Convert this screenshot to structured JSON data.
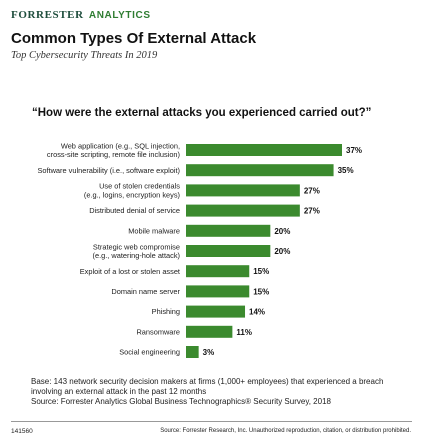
{
  "header": {
    "brand": "Forrester",
    "brand_sub": "ANALYTICS",
    "title": "Common Types Of External Attack",
    "subtitle": "Top Cybersecurity Threats In 2019"
  },
  "question": "“How were the external attacks you experienced carried out?”",
  "chart_data": {
    "type": "bar",
    "orientation": "horizontal",
    "categories": [
      [
        "Web application (e.g., SQL injection,",
        "cross-site scripting, remote file inclusion)"
      ],
      [
        "Software vulnerability (i.e., software exploit)"
      ],
      [
        "Use of stolen credentials",
        "(e.g., logins, encryption keys)"
      ],
      [
        "Distributed denial of service"
      ],
      [
        "Mobile malware"
      ],
      [
        "Strategic web compromise",
        "(e.g., watering-hole attack)"
      ],
      [
        "Exploit of a lost or stolen asset"
      ],
      [
        "Domain name server"
      ],
      [
        "Phishing"
      ],
      [
        "Ransomware"
      ],
      [
        "Social engineering"
      ]
    ],
    "values": [
      37,
      35,
      27,
      27,
      20,
      20,
      15,
      15,
      14,
      11,
      3
    ],
    "value_labels": [
      "37%",
      "35%",
      "27%",
      "27%",
      "20%",
      "20%",
      "15%",
      "15%",
      "14%",
      "11%",
      "3%"
    ],
    "unit": "%",
    "bar_color": "#3b8a2e",
    "grid": false,
    "legend": "none"
  },
  "base_note": "Base: 143 network security decision makers at firms (1,000+ employees) that experienced a breach involving an external attack in the past 12 months",
  "source_note": "Source: Forrester Analytics Global Business Technographics® Security Survey, 2018",
  "footer": {
    "id": "141560",
    "source": "Source: Forrester Research, Inc. Unauthorized reproduction, citation, or distribution prohibited."
  }
}
